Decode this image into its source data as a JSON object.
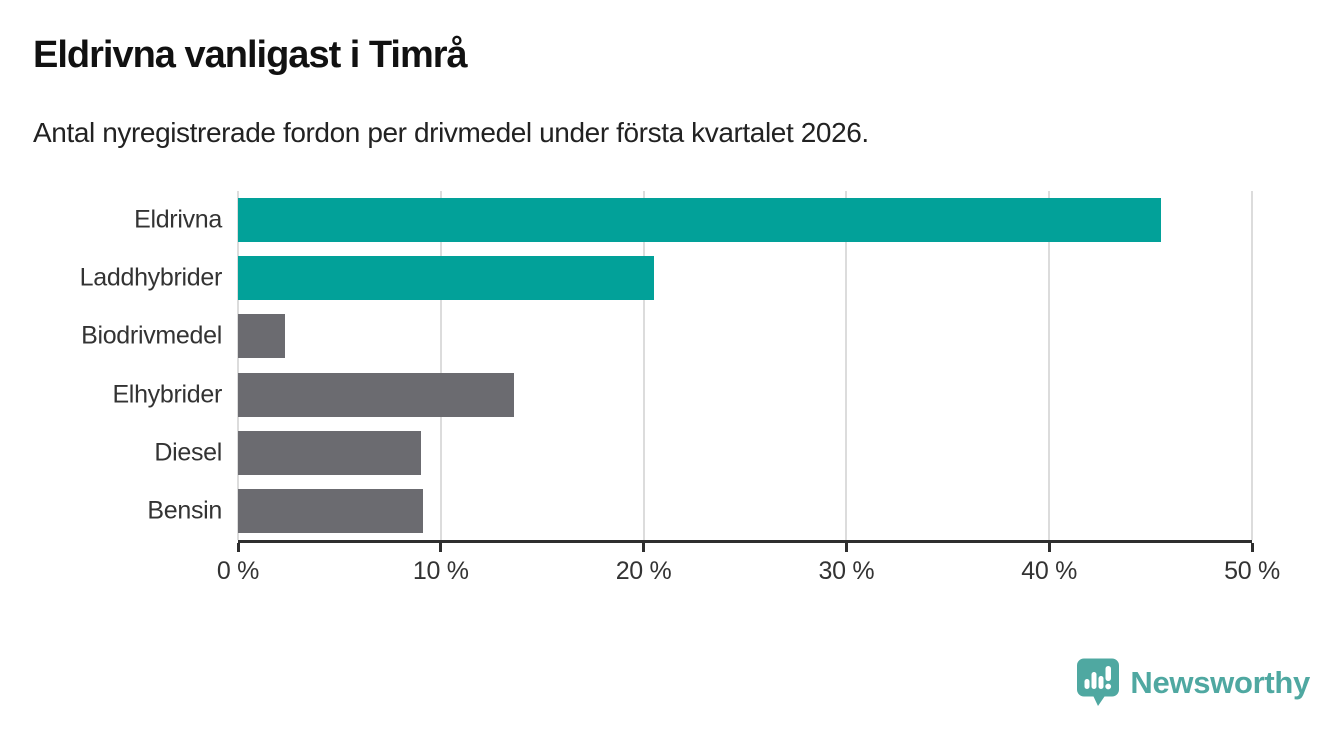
{
  "chart_data": {
    "type": "bar",
    "orientation": "horizontal",
    "title": "Eldrivna vanligast i Timrå",
    "subtitle": "Antal nyregistrerade fordon per drivmedel under första kvartalet 2026.",
    "categories": [
      "Eldrivna",
      "Laddhybrider",
      "Biodrivmedel",
      "Elhybrider",
      "Diesel",
      "Bensin"
    ],
    "values": [
      45.5,
      20.5,
      2.3,
      13.6,
      9.0,
      9.1
    ],
    "value_unit": "%",
    "bar_colors": [
      "#02a199",
      "#02a199",
      "#6b6b70",
      "#6b6b70",
      "#6b6b70",
      "#6b6b70"
    ],
    "xlim": [
      0,
      50
    ],
    "x_ticks": [
      0,
      10,
      20,
      30,
      40,
      50
    ],
    "x_tick_labels": [
      "0 %",
      "10 %",
      "20 %",
      "30 %",
      "40 %",
      "50 %"
    ],
    "grid": "vertical-gridlines",
    "legend": "none",
    "xlabel": "",
    "ylabel": ""
  },
  "branding": {
    "logo_text": "Newsworthy",
    "logo_color": "#4fa8a1",
    "logo_icon": "pin-with-bar-chart-and-exclamation"
  },
  "colors": {
    "bar_teal": "#02a199",
    "bar_gray": "#6b6b70",
    "axis_line": "#2f2f2f",
    "gridline": "#dcdcdc",
    "title_text": "#111111",
    "subtitle_text": "#222222",
    "tick_text": "#333333",
    "background": "#ffffff"
  }
}
